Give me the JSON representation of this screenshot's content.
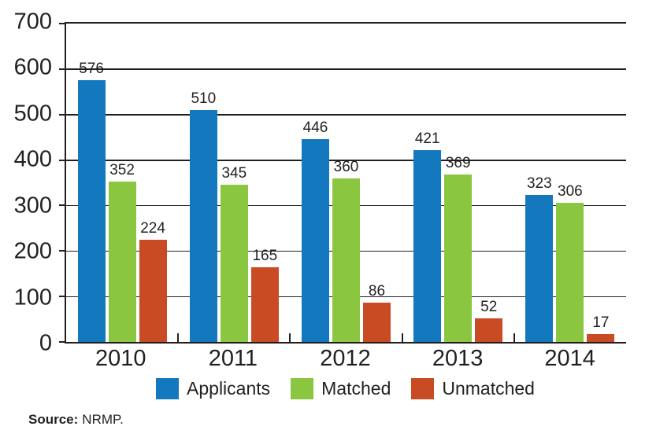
{
  "chart_data": {
    "type": "bar",
    "categories": [
      "2010",
      "2011",
      "2012",
      "2013",
      "2014"
    ],
    "series": [
      {
        "name": "Applicants",
        "color": "#1478be",
        "values": [
          576,
          510,
          446,
          421,
          323
        ]
      },
      {
        "name": "Matched",
        "color": "#8ac640",
        "values": [
          352,
          345,
          360,
          369,
          306
        ]
      },
      {
        "name": "Unmatched",
        "color": "#c84b23",
        "values": [
          224,
          165,
          86,
          52,
          17
        ]
      }
    ],
    "ylim": [
      0,
      700
    ],
    "ytick_step": 100,
    "ytick_labels": [
      "0",
      "100",
      "200",
      "300",
      "400",
      "500",
      "600",
      "700"
    ],
    "grid": true,
    "bar_value_labels": true,
    "legend_position": "bottom"
  },
  "colors": {
    "axis": "#231f20",
    "text": "#231f20",
    "background": "#ffffff"
  },
  "source": {
    "label": "Source:",
    "text": "NRMP."
  }
}
